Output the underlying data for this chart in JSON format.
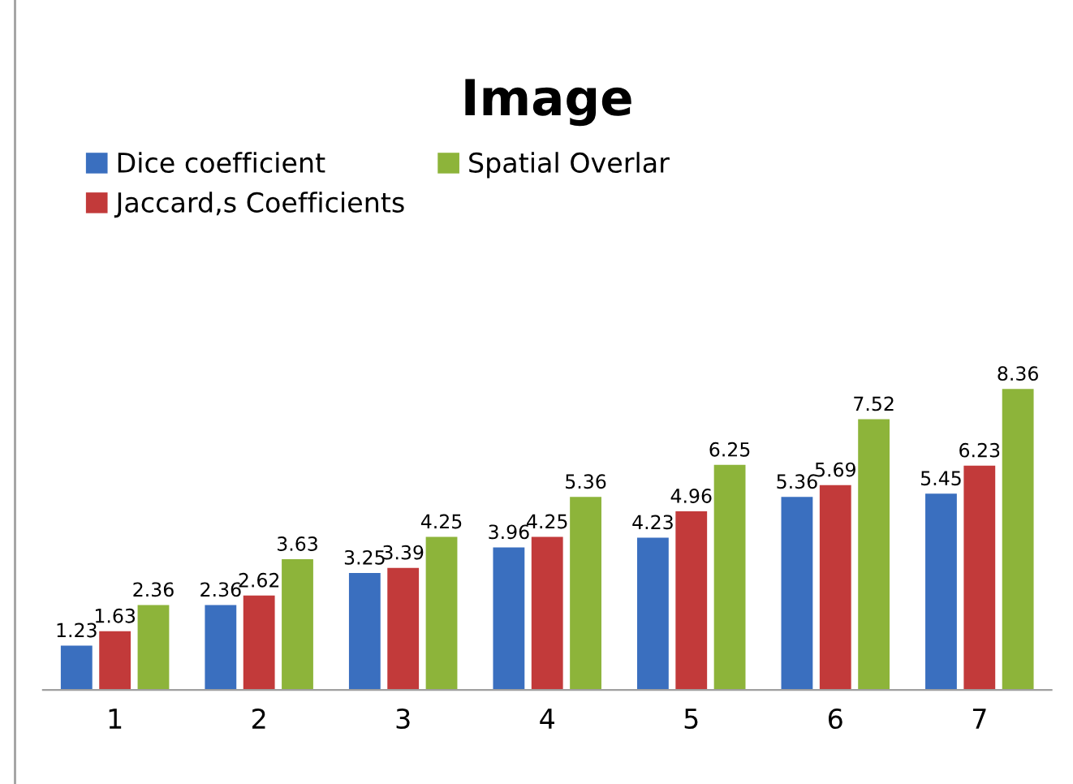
{
  "chart_data": {
    "type": "bar",
    "title": "Image",
    "categories": [
      "1",
      "2",
      "3",
      "4",
      "5",
      "6",
      "7"
    ],
    "series": [
      {
        "name": "Dice coefficient",
        "color": "#3a6fbf",
        "values": [
          1.23,
          2.36,
          3.25,
          3.96,
          4.23,
          5.36,
          5.45
        ]
      },
      {
        "name": "Jaccard,s Coefficients",
        "color": "#c23a3a",
        "values": [
          1.63,
          2.62,
          3.39,
          4.25,
          4.96,
          5.69,
          6.23
        ]
      },
      {
        "name": "Spatial Overlar",
        "color": "#8db43a",
        "values": [
          2.36,
          3.63,
          4.25,
          5.36,
          6.25,
          7.52,
          8.36
        ]
      }
    ],
    "data_labels": true,
    "legend": "top",
    "grid": false
  }
}
